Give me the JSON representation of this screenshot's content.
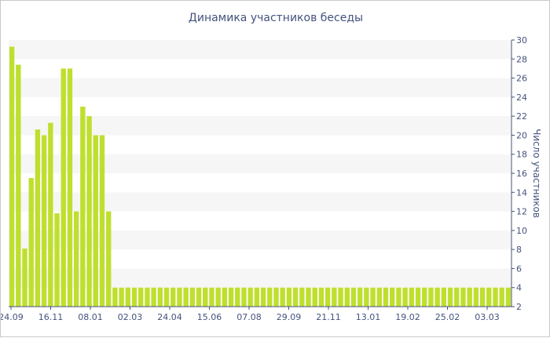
{
  "chart_data": {
    "type": "bar",
    "title": "Динамика участников беседы",
    "ylabel": "Число участников",
    "ylim": [
      2,
      30
    ],
    "yticks": [
      2,
      4,
      6,
      8,
      10,
      12,
      14,
      16,
      18,
      20,
      22,
      24,
      26,
      28,
      30
    ],
    "xtick_labels": [
      "24.09",
      "16.11",
      "08.01",
      "02.03",
      "24.04",
      "15.06",
      "07.08",
      "29.09",
      "21.11",
      "13.01",
      "19.02",
      "25.02",
      "03.03"
    ],
    "bar_color": "#bfdf2f",
    "grid_band_color": "#f6f6f6",
    "values": [
      29.3,
      27.4,
      8.1,
      15.5,
      20.6,
      20.0,
      21.3,
      11.8,
      27.0,
      27.0,
      12.0,
      23.0,
      22.0,
      20.0,
      20.0,
      12.0,
      4,
      4,
      4,
      4,
      4,
      4,
      4,
      4,
      4,
      4,
      4,
      4,
      4,
      4,
      4,
      4,
      4,
      4,
      4,
      4,
      4,
      4,
      4,
      4,
      4,
      4,
      4,
      4,
      4,
      4,
      4,
      4,
      4,
      4,
      4,
      4,
      4,
      4,
      4,
      4,
      4,
      4,
      4,
      4,
      4,
      4,
      4,
      4,
      4,
      4,
      4,
      4,
      4,
      4,
      4,
      4,
      4,
      4,
      4,
      4,
      4,
      4
    ]
  }
}
